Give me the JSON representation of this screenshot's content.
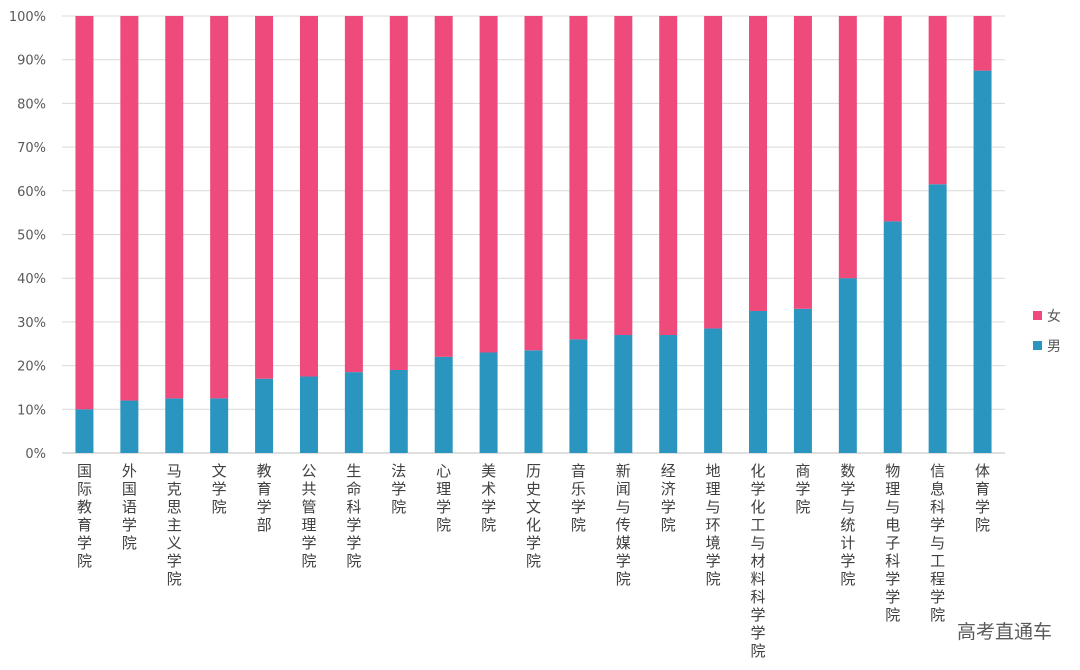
{
  "chart_data": {
    "type": "bar",
    "stacked": "percent",
    "categories": [
      "国际教育学院",
      "外国语学院",
      "马克思主义学院",
      "文学院",
      "教育学部",
      "公共管理学院",
      "生命科学学院",
      "法学院",
      "心理学院",
      "美术学院",
      "历史文化学院",
      "音乐学院",
      "新闻与传媒学院",
      "经济学院",
      "地理与环境学院",
      "化学化工与材料科学学院",
      "商学院",
      "数学与统计学院",
      "物理与电子科学学院",
      "信息科学与工程学院",
      "体育学院"
    ],
    "series": [
      {
        "name": "男",
        "color": "#2a96bf",
        "values": [
          10,
          12,
          12.5,
          12.5,
          17,
          17.5,
          18.5,
          19,
          22,
          23,
          23.5,
          26,
          27,
          27,
          28.5,
          32.5,
          33,
          40,
          53,
          61.5,
          87.5
        ]
      },
      {
        "name": "女",
        "color": "#ee4a7b",
        "values": [
          90,
          88,
          87.5,
          87.5,
          83,
          82.5,
          81.5,
          81,
          78,
          77,
          76.5,
          74,
          73,
          73,
          71.5,
          67.5,
          67,
          60,
          47,
          38.5,
          12.5
        ]
      }
    ],
    "ylim": [
      0,
      100
    ],
    "yticks": [
      "0%",
      "10%",
      "20%",
      "30%",
      "40%",
      "50%",
      "60%",
      "70%",
      "80%",
      "90%",
      "100%"
    ],
    "grid": true,
    "legend_position": "right",
    "legend": [
      {
        "name": "女",
        "color": "#ee4a7b"
      },
      {
        "name": "男",
        "color": "#2a96bf"
      }
    ],
    "title": "",
    "xlabel": "",
    "ylabel": ""
  },
  "watermark": "高考直通车"
}
